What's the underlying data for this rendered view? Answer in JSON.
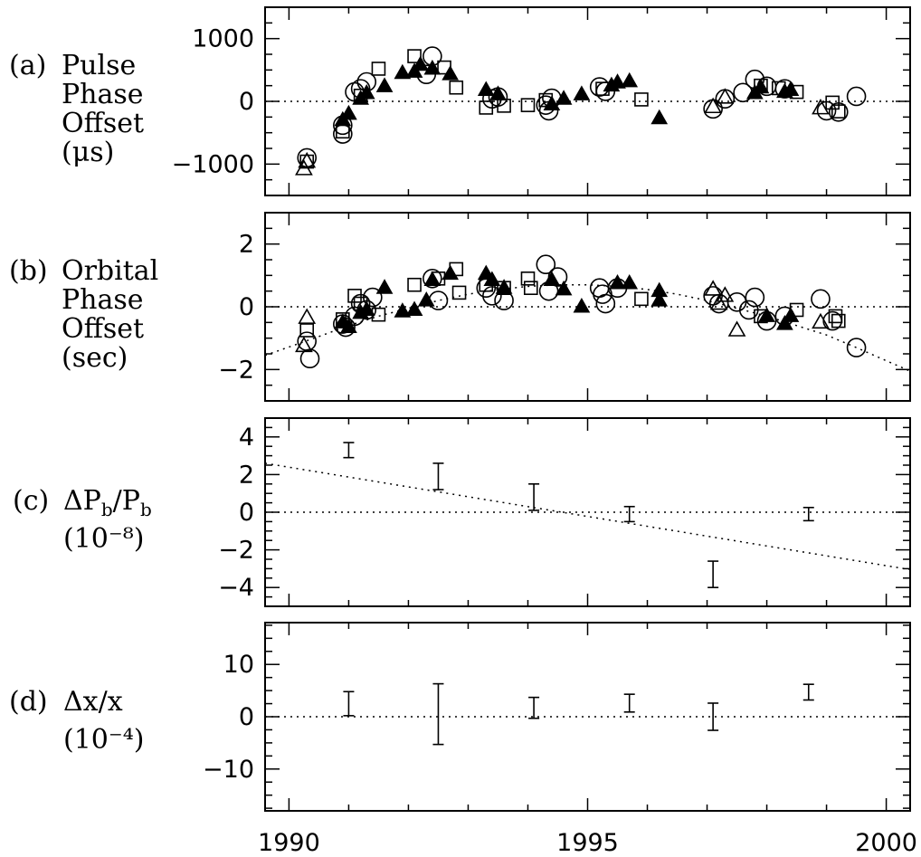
{
  "chart_data": [
    {
      "type": "scatter",
      "panel": "(a)",
      "label_lines": [
        "Pulse",
        "Phase",
        "Offset",
        "(μs)"
      ],
      "ylim": [
        -1500,
        1500
      ],
      "yticks": [
        -1000,
        0,
        1000
      ],
      "ytick_labels": [
        "−1000",
        "0",
        "1000"
      ],
      "xlim": [
        1989.6,
        2000.4
      ],
      "zero_line": true,
      "series": [
        {
          "marker": "open-circle",
          "points": [
            [
              1990.3,
              -900
            ],
            [
              1990.9,
              -380
            ],
            [
              1990.9,
              -520
            ],
            [
              1991.1,
              150
            ],
            [
              1991.2,
              200
            ],
            [
              1991.3,
              310
            ],
            [
              1992.3,
              430
            ],
            [
              1992.4,
              720
            ],
            [
              1993.4,
              40
            ],
            [
              1993.5,
              70
            ],
            [
              1994.3,
              -60
            ],
            [
              1994.35,
              -150
            ],
            [
              1994.4,
              50
            ],
            [
              1995.2,
              230
            ],
            [
              1995.3,
              160
            ],
            [
              1997.1,
              -120
            ],
            [
              1997.3,
              40
            ],
            [
              1997.6,
              140
            ],
            [
              1997.8,
              350
            ],
            [
              1998.0,
              240
            ],
            [
              1998.3,
              200
            ],
            [
              1999.0,
              -150
            ],
            [
              1999.2,
              -170
            ],
            [
              1999.5,
              80
            ]
          ]
        },
        {
          "marker": "open-square",
          "points": [
            [
              1990.3,
              -960
            ],
            [
              1990.9,
              -480
            ],
            [
              1991.2,
              90
            ],
            [
              1991.5,
              520
            ],
            [
              1992.1,
              720
            ],
            [
              1992.6,
              540
            ],
            [
              1992.8,
              220
            ],
            [
              1993.3,
              -100
            ],
            [
              1993.6,
              -70
            ],
            [
              1994.0,
              -60
            ],
            [
              1994.3,
              20
            ],
            [
              1995.25,
              200
            ],
            [
              1995.9,
              30
            ],
            [
              1997.9,
              250
            ],
            [
              1998.2,
              210
            ],
            [
              1998.5,
              150
            ],
            [
              1999.1,
              -20
            ],
            [
              1999.2,
              -160
            ]
          ]
        },
        {
          "marker": "filled-triangle",
          "points": [
            [
              1990.9,
              -300
            ],
            [
              1991.0,
              -200
            ],
            [
              1991.2,
              40
            ],
            [
              1991.3,
              130
            ],
            [
              1991.6,
              240
            ],
            [
              1991.9,
              450
            ],
            [
              1992.1,
              470
            ],
            [
              1992.2,
              580
            ],
            [
              1992.4,
              520
            ],
            [
              1992.7,
              430
            ],
            [
              1993.3,
              180
            ],
            [
              1993.5,
              110
            ],
            [
              1994.4,
              -50
            ],
            [
              1994.6,
              40
            ],
            [
              1994.9,
              110
            ],
            [
              1995.4,
              250
            ],
            [
              1995.5,
              300
            ],
            [
              1995.7,
              320
            ],
            [
              1996.2,
              -270
            ],
            [
              1997.8,
              130
            ],
            [
              1997.9,
              220
            ],
            [
              1998.3,
              150
            ],
            [
              1998.4,
              180
            ]
          ]
        },
        {
          "marker": "open-triangle",
          "points": [
            [
              1990.25,
              -1080
            ],
            [
              1990.3,
              -960
            ],
            [
              1997.1,
              -90
            ],
            [
              1997.3,
              60
            ],
            [
              1998.9,
              -110
            ]
          ]
        }
      ]
    },
    {
      "type": "scatter",
      "panel": "(b)",
      "label_lines": [
        "Orbital",
        "Phase",
        "Offset",
        "(sec)"
      ],
      "ylim": [
        -3,
        3
      ],
      "yticks": [
        -2,
        0,
        2
      ],
      "ytick_labels": [
        "−2",
        "0",
        "2"
      ],
      "xlim": [
        1989.6,
        2000.4
      ],
      "zero_line": true,
      "curve": {
        "x": [
          1989.6,
          1990.5,
          1991.0,
          1991.5,
          1992.0,
          1992.5,
          1993.0,
          1993.5,
          1994.0,
          1994.5,
          1995.0,
          1995.5,
          1996.0,
          1996.5,
          1997.0,
          1997.5,
          1998.0,
          1998.5,
          1999.0,
          1999.5,
          2000.0,
          2000.4
        ],
        "y": [
          -1.55,
          -0.95,
          -0.6,
          -0.3,
          -0.05,
          0.2,
          0.4,
          0.55,
          0.65,
          0.7,
          0.7,
          0.65,
          0.55,
          0.4,
          0.2,
          -0.05,
          -0.3,
          -0.6,
          -0.9,
          -1.3,
          -1.72,
          -2.05
        ]
      },
      "series": [
        {
          "marker": "open-circle",
          "points": [
            [
              1990.3,
              -1.1
            ],
            [
              1990.35,
              -1.65
            ],
            [
              1990.9,
              -0.55
            ],
            [
              1990.95,
              -0.65
            ],
            [
              1991.1,
              -0.3
            ],
            [
              1991.2,
              0.1
            ],
            [
              1991.3,
              -0.1
            ],
            [
              1991.4,
              0.3
            ],
            [
              1992.4,
              0.9
            ],
            [
              1992.5,
              0.2
            ],
            [
              1993.3,
              0.6
            ],
            [
              1993.4,
              0.35
            ],
            [
              1993.6,
              0.2
            ],
            [
              1994.3,
              1.35
            ],
            [
              1994.35,
              0.5
            ],
            [
              1994.5,
              0.95
            ],
            [
              1995.2,
              0.6
            ],
            [
              1995.25,
              0.4
            ],
            [
              1995.3,
              0.1
            ],
            [
              1995.5,
              0.6
            ],
            [
              1997.1,
              0.35
            ],
            [
              1997.2,
              0.1
            ],
            [
              1997.5,
              0.15
            ],
            [
              1997.7,
              -0.1
            ],
            [
              1997.8,
              0.3
            ],
            [
              1998.0,
              -0.45
            ],
            [
              1998.3,
              -0.3
            ],
            [
              1998.9,
              0.25
            ],
            [
              1999.1,
              -0.45
            ],
            [
              1999.5,
              -1.3
            ]
          ]
        },
        {
          "marker": "open-square",
          "points": [
            [
              1990.3,
              -0.75
            ],
            [
              1990.9,
              -0.4
            ],
            [
              1991.1,
              0.35
            ],
            [
              1991.2,
              0.1
            ],
            [
              1991.5,
              -0.25
            ],
            [
              1992.1,
              0.7
            ],
            [
              1992.5,
              0.9
            ],
            [
              1992.8,
              1.2
            ],
            [
              1992.85,
              0.45
            ],
            [
              1993.3,
              0.7
            ],
            [
              1993.6,
              0.6
            ],
            [
              1994.0,
              0.9
            ],
            [
              1994.05,
              0.6
            ],
            [
              1995.9,
              0.25
            ],
            [
              1997.9,
              -0.3
            ],
            [
              1998.5,
              -0.1
            ],
            [
              1999.15,
              -0.3
            ],
            [
              1999.2,
              -0.45
            ]
          ]
        },
        {
          "marker": "filled-triangle",
          "points": [
            [
              1990.9,
              -0.5
            ],
            [
              1991.0,
              -0.65
            ],
            [
              1991.2,
              -0.2
            ],
            [
              1991.3,
              -0.1
            ],
            [
              1991.6,
              0.6
            ],
            [
              1991.9,
              -0.15
            ],
            [
              1992.1,
              -0.1
            ],
            [
              1992.3,
              0.2
            ],
            [
              1992.4,
              0.85
            ],
            [
              1992.7,
              1.05
            ],
            [
              1993.3,
              1.05
            ],
            [
              1993.4,
              0.85
            ],
            [
              1993.6,
              0.6
            ],
            [
              1994.4,
              0.85
            ],
            [
              1994.6,
              0.55
            ],
            [
              1994.9,
              0.0
            ],
            [
              1995.5,
              0.75
            ],
            [
              1995.7,
              0.75
            ],
            [
              1996.2,
              0.5
            ],
            [
              1996.2,
              0.2
            ],
            [
              1998.0,
              -0.3
            ],
            [
              1998.3,
              -0.55
            ],
            [
              1998.4,
              -0.3
            ]
          ]
        },
        {
          "marker": "open-triangle",
          "points": [
            [
              1990.25,
              -1.25
            ],
            [
              1990.3,
              -0.35
            ],
            [
              1997.1,
              0.55
            ],
            [
              1997.2,
              0.1
            ],
            [
              1997.3,
              0.35
            ],
            [
              1997.5,
              -0.75
            ],
            [
              1998.9,
              -0.5
            ]
          ]
        }
      ]
    },
    {
      "type": "errorbar",
      "panel": "(c)",
      "label_lines": [
        "ΔP_b/P_b",
        "(10⁻⁸)"
      ],
      "ylim": [
        -5,
        5
      ],
      "yticks": [
        -4,
        -2,
        0,
        2,
        4
      ],
      "ytick_labels": [
        "−4",
        "−2",
        "0",
        "2",
        "4"
      ],
      "xlim": [
        1989.6,
        2000.4
      ],
      "zero_line": true,
      "line": {
        "x": [
          1989.6,
          2000.4
        ],
        "y": [
          2.6,
          -3.05
        ]
      },
      "points": [
        {
          "x": 1991.0,
          "y": 3.3,
          "err": 0.4
        },
        {
          "x": 1992.5,
          "y": 1.9,
          "err": 0.7
        },
        {
          "x": 1994.1,
          "y": 0.8,
          "err": 0.7
        },
        {
          "x": 1995.7,
          "y": -0.1,
          "err": 0.4
        },
        {
          "x": 1997.1,
          "y": -3.3,
          "err": 0.7
        },
        {
          "x": 1998.7,
          "y": -0.1,
          "err": 0.35
        }
      ]
    },
    {
      "type": "errorbar",
      "panel": "(d)",
      "label_lines": [
        "Δx/x",
        "(10⁻⁴)"
      ],
      "ylim": [
        -18,
        18
      ],
      "yticks": [
        -10,
        0,
        10
      ],
      "ytick_labels": [
        "−10",
        "0",
        "10"
      ],
      "xlim": [
        1989.6,
        2000.4
      ],
      "xticks": [
        1990,
        1995,
        2000
      ],
      "xtick_labels": [
        "1990",
        "1995",
        "2000"
      ],
      "zero_line": true,
      "points": [
        {
          "x": 1991.0,
          "y": 2.5,
          "err": 2.3
        },
        {
          "x": 1992.5,
          "y": 0.5,
          "err": 5.8
        },
        {
          "x": 1994.1,
          "y": 1.7,
          "err": 2.0
        },
        {
          "x": 1995.7,
          "y": 2.6,
          "err": 1.7
        },
        {
          "x": 1997.1,
          "y": 0.0,
          "err": 2.6
        },
        {
          "x": 1998.7,
          "y": 4.7,
          "err": 1.5
        }
      ]
    }
  ]
}
